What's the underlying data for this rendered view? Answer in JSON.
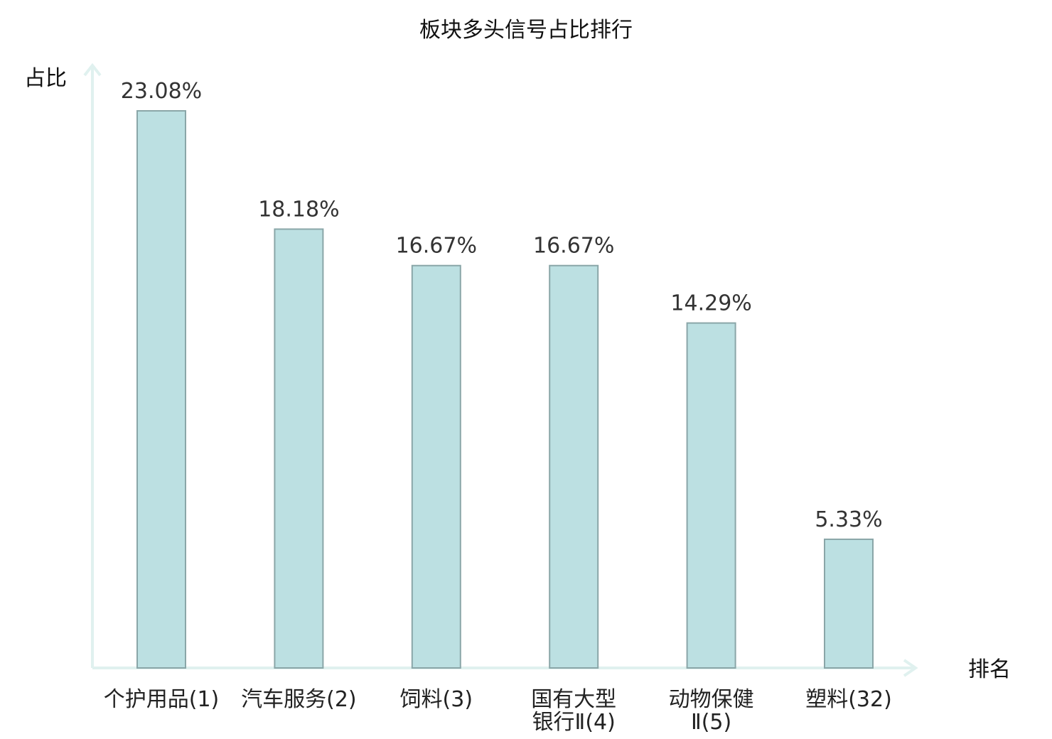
{
  "chart_data": {
    "type": "bar",
    "title": "板块多头信号占比排行",
    "ylabel": "占比",
    "xlabel": "排名",
    "categories": [
      {
        "name": "个护用品",
        "rank": "(1)",
        "highlight": false
      },
      {
        "name": "汽车服务",
        "rank": "(2)",
        "highlight": false
      },
      {
        "name": "饲料",
        "rank": "(3)",
        "highlight": false
      },
      {
        "name": "国有大型银行Ⅱ",
        "rank": "(4)",
        "highlight": false
      },
      {
        "name": "动物保健Ⅱ",
        "rank": "(5)",
        "highlight": false
      },
      {
        "name": "塑料",
        "rank": "(32)",
        "highlight": true
      }
    ],
    "values": [
      23.08,
      18.18,
      16.67,
      16.67,
      14.29,
      5.33
    ],
    "value_labels": [
      "23.08%",
      "18.18%",
      "16.67%",
      "16.67%",
      "14.29%",
      "5.33%"
    ],
    "ylim": [
      0,
      23.08
    ],
    "grid": false,
    "colors": {
      "bar_fill": "#bce0e2",
      "bar_stroke": "#8aa6a8",
      "axis": "#e0f1ef",
      "highlight_text": "#e00000",
      "normal_text": "#222222"
    }
  }
}
